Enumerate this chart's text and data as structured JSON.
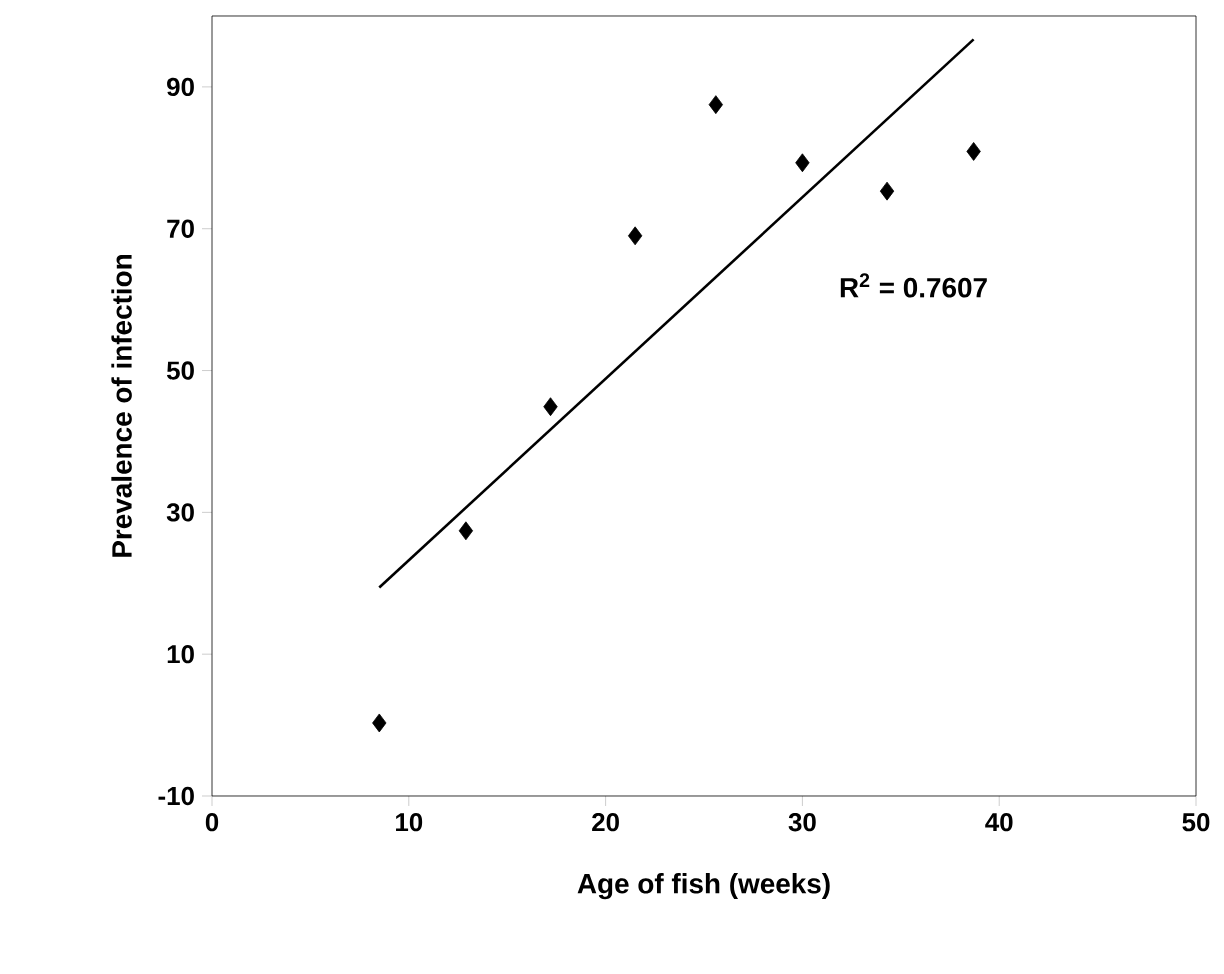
{
  "chart_data": {
    "type": "scatter",
    "xlabel": "Age of fish (weeks)",
    "ylabel": "Prevalence of infection",
    "annotations": [
      "R$^{2}$ = 0.7607"
    ],
    "xlim": [
      0,
      50
    ],
    "xticks": [
      0,
      10,
      20,
      30,
      40,
      50
    ],
    "ylim": [
      -10,
      100
    ],
    "yticks": [
      -10,
      10,
      30,
      50,
      70,
      90
    ],
    "grid": false,
    "legend": false,
    "series": [
      {
        "marker": "diamond",
        "color": "#000000",
        "x": [
          8.5,
          12.9,
          17.2,
          21.5,
          25.6,
          30.0,
          34.3,
          38.7
        ],
        "values": [
          0.3,
          27.4,
          44.9,
          69.0,
          87.5,
          79.3,
          75.3,
          80.9
        ]
      },
      {
        "type": "line",
        "color": "#000000",
        "line_style": "solid",
        "x": [
          8.5,
          38.7
        ],
        "values": [
          19.4,
          96.7
        ]
      }
    ]
  }
}
